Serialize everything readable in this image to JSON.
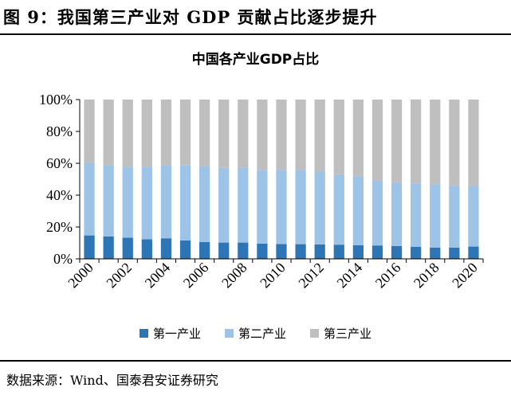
{
  "figure": {
    "title": "图 9：我国第三产业对 GDP 贡献占比逐步提升",
    "source": "数据来源：Wind、国泰君安证券研究"
  },
  "chart_data": {
    "type": "bar",
    "stacked": true,
    "percent": true,
    "title": "中国各产业GDP占比",
    "categories": [
      "2000",
      "2001",
      "2002",
      "2003",
      "2004",
      "2005",
      "2006",
      "2007",
      "2008",
      "2009",
      "2010",
      "2011",
      "2012",
      "2013",
      "2014",
      "2015",
      "2016",
      "2017",
      "2018",
      "2019",
      "2020"
    ],
    "x_tick_labels": [
      "2000",
      "2002",
      "2004",
      "2006",
      "2008",
      "2010",
      "2012",
      "2014",
      "2016",
      "2018",
      "2020"
    ],
    "y_tick_labels": [
      "0%",
      "20%",
      "40%",
      "60%",
      "80%",
      "100%"
    ],
    "ylim": [
      0,
      100
    ],
    "grid": false,
    "legend_position": "bottom",
    "series": [
      {
        "name": "第一产业",
        "color": "#2e75b6",
        "values": [
          14.7,
          14.0,
          13.3,
          12.3,
          12.9,
          11.6,
          10.6,
          10.2,
          10.2,
          9.6,
          9.3,
          9.2,
          9.1,
          8.9,
          8.6,
          8.4,
          8.1,
          7.5,
          7.0,
          7.1,
          7.7
        ]
      },
      {
        "name": "第二产业",
        "color": "#9dc3e6",
        "values": [
          45.5,
          44.8,
          44.5,
          45.6,
          45.9,
          47.0,
          47.6,
          46.9,
          47.0,
          46.0,
          46.5,
          46.5,
          45.4,
          44.2,
          43.1,
          40.8,
          39.6,
          39.9,
          39.7,
          38.6,
          37.8
        ]
      },
      {
        "name": "第三产业",
        "color": "#bfbfbf",
        "values": [
          39.8,
          41.2,
          42.2,
          42.1,
          41.2,
          41.4,
          41.8,
          42.9,
          42.8,
          44.4,
          44.2,
          44.3,
          45.5,
          46.9,
          48.3,
          50.8,
          52.3,
          52.7,
          53.3,
          54.3,
          54.5
        ]
      }
    ]
  }
}
